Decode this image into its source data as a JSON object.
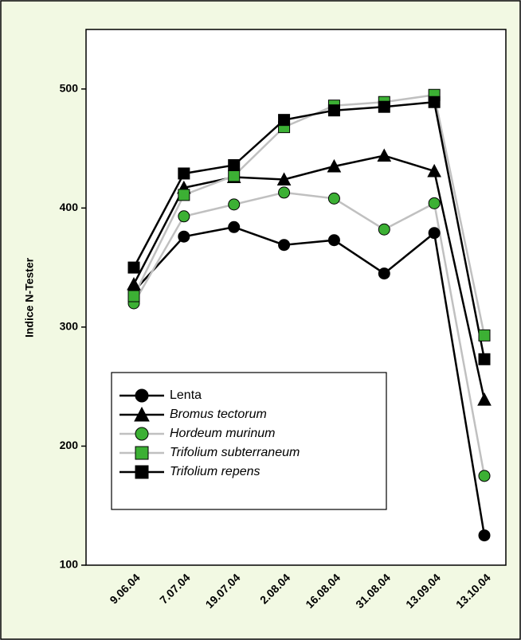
{
  "chart_data": {
    "type": "line",
    "ylabel": "Indice N-Tester",
    "categories": [
      "9.06.04",
      "7.07.04",
      "19.07.04",
      "2.08.04",
      "16.08.04",
      "31.08.04",
      "13.09.04",
      "13.10.04"
    ],
    "series": [
      {
        "name": "Lenta",
        "color": "#000000",
        "line_color": "#000000",
        "marker": "circle",
        "italic": false,
        "values": [
          330,
          376,
          384,
          369,
          373,
          345,
          379,
          125
        ]
      },
      {
        "name": "Bromus tectorum",
        "color": "#000000",
        "line_color": "#000000",
        "marker": "triangle",
        "italic": true,
        "values": [
          336,
          417,
          426,
          424,
          435,
          444,
          431,
          239
        ]
      },
      {
        "name": "Hordeum murinum",
        "color": "#3cb034",
        "line_color": "#c0c0c0",
        "marker": "circle",
        "italic": true,
        "values": [
          320,
          393,
          403,
          413,
          408,
          382,
          404,
          175
        ]
      },
      {
        "name": "Trifolium subterraneum",
        "color": "#3cb034",
        "line_color": "#c0c0c0",
        "marker": "square",
        "italic": true,
        "values": [
          326,
          411,
          427,
          468,
          486,
          489,
          495,
          293
        ]
      },
      {
        "name": "Trifolium repens",
        "color": "#000000",
        "line_color": "#000000",
        "marker": "square",
        "italic": true,
        "values": [
          350,
          429,
          436,
          474,
          482,
          485,
          489,
          273
        ]
      }
    ],
    "ylim": [
      100,
      550
    ],
    "yticks": [
      100,
      200,
      300,
      400,
      500
    ],
    "grid": false,
    "legend": "lower left"
  }
}
